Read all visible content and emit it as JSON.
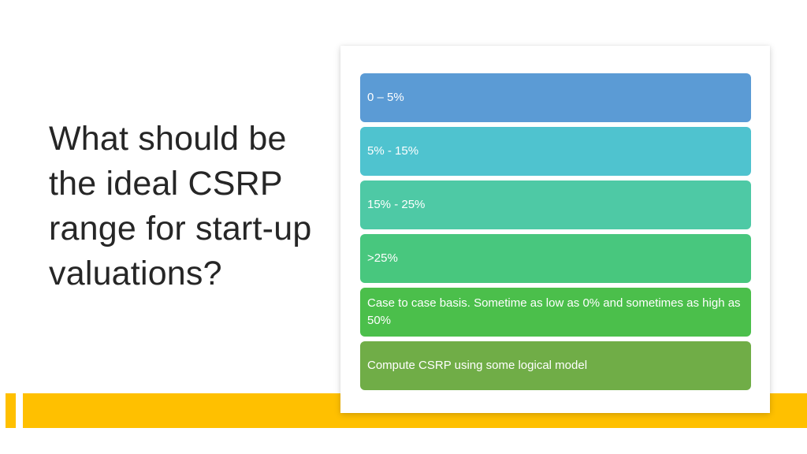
{
  "slide": {
    "title": "What should be the ideal CSRP range for start-up valuations?"
  },
  "options": [
    {
      "label": "0 – 5%",
      "color": "#5B9BD5"
    },
    {
      "label": "5% - 15%",
      "color": "#4FC3CF"
    },
    {
      "label": "15% - 25%",
      "color": "#4EC9A5"
    },
    {
      "label": ">25%",
      "color": "#48C77E"
    },
    {
      "label": "Case to case basis. Sometime as low as 0% and sometimes as high as 50%",
      "color": "#4BBF4B"
    },
    {
      "label": "Compute CSRP using some logical model",
      "color": "#70AD47"
    }
  ],
  "colors": {
    "accent": "#FFC000",
    "title_text": "#262626"
  }
}
